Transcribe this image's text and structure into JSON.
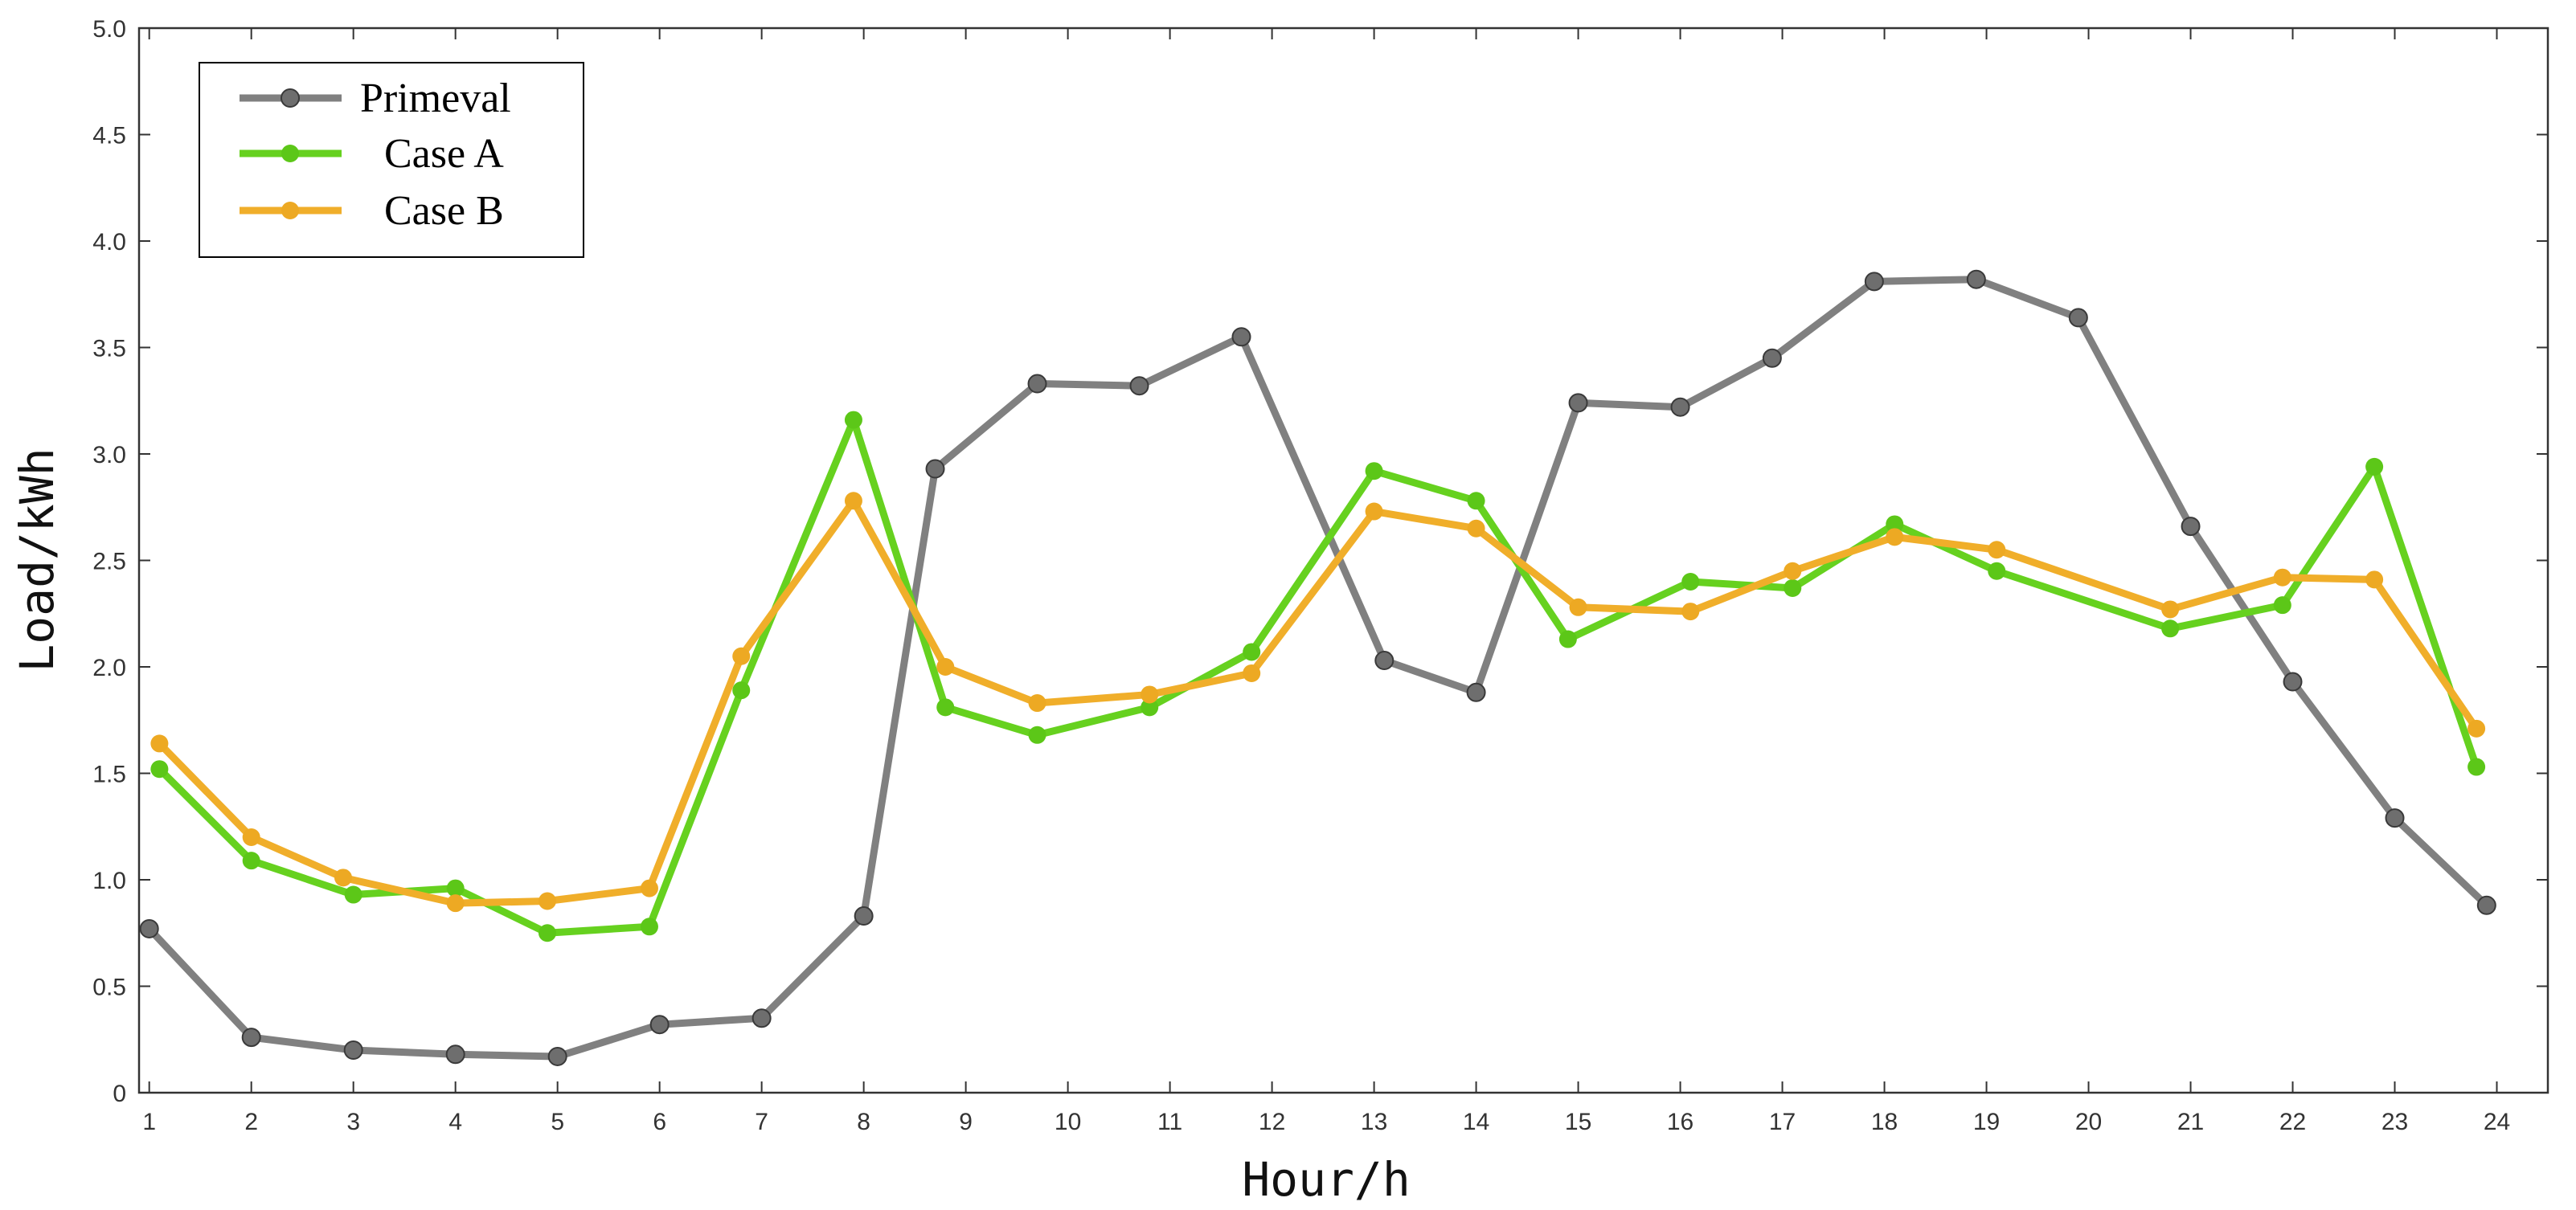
{
  "chart_data": {
    "type": "line",
    "title": "",
    "xlabel": "Hour/h",
    "ylabel": "Load/kWh",
    "xlim": [
      0.9,
      24.5
    ],
    "ylim": [
      0,
      5
    ],
    "x_ticks": [
      1,
      2,
      3,
      4,
      5,
      6,
      7,
      8,
      9,
      10,
      11,
      12,
      13,
      14,
      15,
      16,
      17,
      18,
      19,
      20,
      21,
      22,
      23,
      24
    ],
    "y_ticks": [
      0,
      0.5,
      1.0,
      1.5,
      2.0,
      2.5,
      3.0,
      3.5,
      4.0,
      4.5,
      5.0
    ],
    "y_tick_labels": [
      "0",
      "0.5",
      "1.0",
      "1.5",
      "2.0",
      "2.5",
      "3.0",
      "3.5",
      "4.0",
      "4.5",
      "5.0"
    ],
    "grid": false,
    "legend_position": "top-left",
    "series": [
      {
        "name": "Primeval",
        "color": "#808080",
        "marker_color": "#6e6e6e",
        "x": [
          1,
          2,
          3,
          4,
          5,
          6,
          7,
          8,
          8.7,
          9.7,
          10.7,
          11.7,
          13.1,
          14.0,
          15.0,
          16.0,
          16.9,
          17.9,
          18.9,
          19.9,
          21.0,
          22.0,
          23.0,
          23.9
        ],
        "y": [
          0.77,
          0.26,
          0.2,
          0.18,
          0.17,
          0.32,
          0.35,
          0.83,
          2.93,
          3.33,
          3.32,
          3.55,
          2.03,
          1.88,
          3.24,
          3.22,
          3.45,
          3.81,
          3.82,
          3.64,
          2.66,
          1.93,
          1.29,
          0.88
        ]
      },
      {
        "name": "Case A",
        "color": "#66d11f",
        "marker_color": "#5cc718",
        "x": [
          1.1,
          2.0,
          3.0,
          4.0,
          4.9,
          5.9,
          6.8,
          7.9,
          8.8,
          9.7,
          10.8,
          11.8,
          13.0,
          14.0,
          14.9,
          16.1,
          17.1,
          18.1,
          19.1,
          20.8,
          21.9,
          22.8,
          23.8
        ],
        "y": [
          1.52,
          1.09,
          0.93,
          0.96,
          0.75,
          0.78,
          1.89,
          3.16,
          1.81,
          1.68,
          1.81,
          2.07,
          2.92,
          2.78,
          2.13,
          2.4,
          2.37,
          2.67,
          2.45,
          2.18,
          2.29,
          2.94,
          1.53
        ]
      },
      {
        "name": "Case B",
        "color": "#f0ae2a",
        "marker_color": "#eda923",
        "x": [
          1.1,
          2.0,
          2.9,
          4.0,
          4.9,
          5.9,
          6.8,
          7.9,
          8.8,
          9.7,
          10.8,
          11.8,
          13.0,
          14.0,
          15.0,
          16.1,
          17.1,
          18.1,
          19.1,
          20.8,
          21.9,
          22.8,
          23.8
        ],
        "y": [
          1.64,
          1.2,
          1.01,
          0.89,
          0.9,
          0.96,
          2.05,
          2.78,
          2.0,
          1.83,
          1.87,
          1.97,
          2.73,
          2.65,
          2.28,
          2.26,
          2.45,
          2.61,
          2.55,
          2.27,
          2.42,
          2.41,
          1.71
        ]
      }
    ]
  }
}
